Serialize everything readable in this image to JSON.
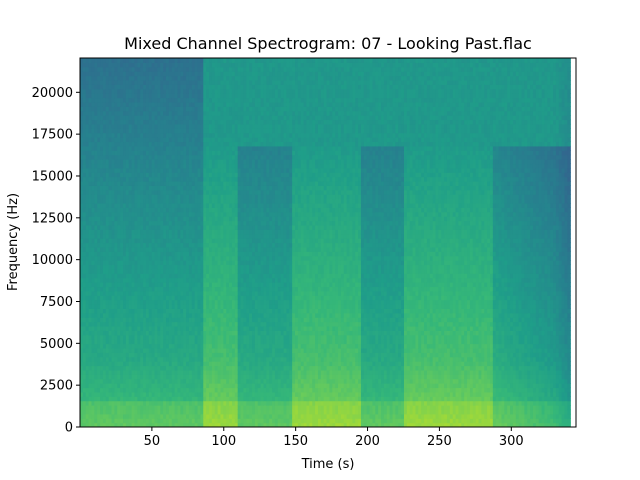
{
  "chart_data": {
    "type": "heatmap",
    "title": "Mixed Channel Spectrogram: 07 - Looking Past.flac",
    "xlabel": "Time (s)",
    "ylabel": "Frequency (Hz)",
    "xlim": [
      0,
      345
    ],
    "ylim": [
      0,
      22050
    ],
    "xticks": [
      50,
      100,
      150,
      200,
      250,
      300
    ],
    "yticks": [
      0,
      2500,
      5000,
      7500,
      10000,
      12500,
      15000,
      17500,
      20000
    ],
    "colormap": "viridis",
    "signal_end_s": 341,
    "sections": [
      {
        "start": 0,
        "end": 85,
        "level": "medium",
        "band_limit_hz": 22050
      },
      {
        "start": 85,
        "end": 110,
        "level": "high",
        "band_limit_hz": 16800
      },
      {
        "start": 110,
        "end": 148,
        "level": "medium",
        "band_limit_hz": 16800
      },
      {
        "start": 148,
        "end": 195,
        "level": "high",
        "band_limit_hz": 16800
      },
      {
        "start": 195,
        "end": 225,
        "level": "medium",
        "band_limit_hz": 16800
      },
      {
        "start": 225,
        "end": 287,
        "level": "high",
        "band_limit_hz": 16800
      },
      {
        "start": 287,
        "end": 341,
        "level": "fade",
        "band_limit_hz": 16800
      }
    ],
    "grid": false
  }
}
